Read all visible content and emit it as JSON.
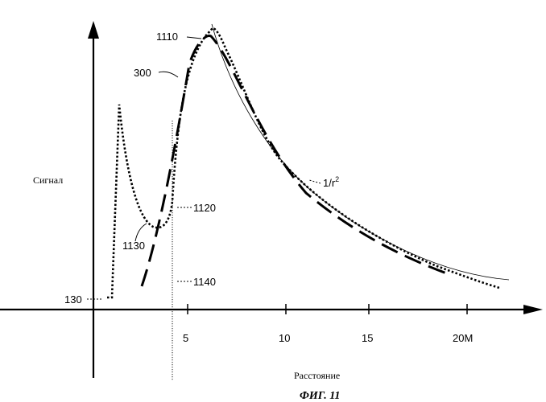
{
  "chart_data": {
    "type": "line",
    "xlabel": "Расстояние",
    "ylabel": "Сигнал",
    "caption": "ФИГ. 11",
    "x_ticks": [
      "5",
      "10",
      "15",
      "20M"
    ],
    "curve_labels": {
      "inverse_square": "1/r",
      "inverse_square_sup": "2",
      "c300": "300",
      "c1110": "1110",
      "c1120": "1120",
      "c1130": "1130",
      "c1140": "1140",
      "c130": "130"
    },
    "series": [
      {
        "name": "300",
        "style": "long-dash"
      },
      {
        "name": "1110",
        "style": "dotted"
      },
      {
        "name": "1/r2",
        "style": "thin"
      }
    ]
  }
}
